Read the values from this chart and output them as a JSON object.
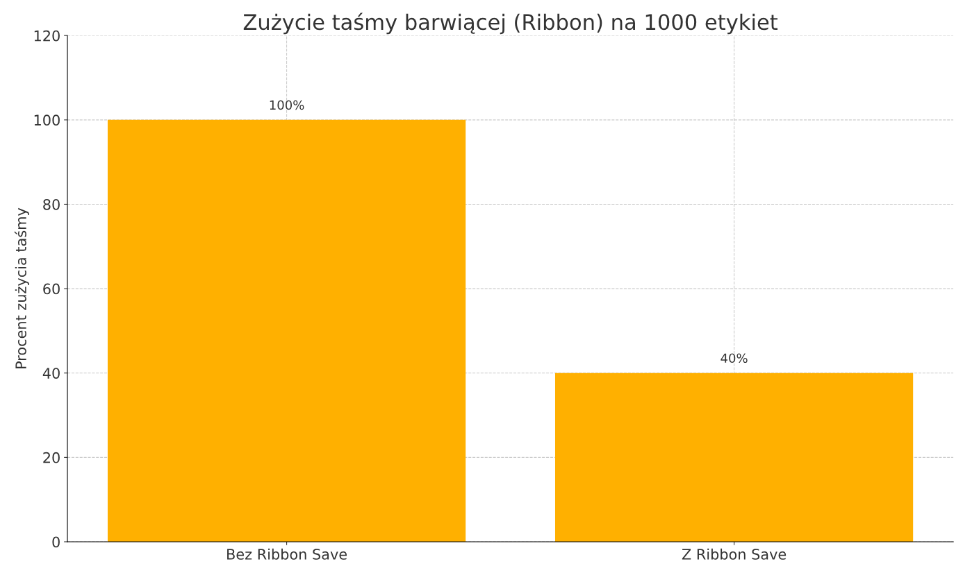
{
  "chart_data": {
    "type": "bar",
    "title": "Zużycie taśmy barwiącej (Ribbon) na 1000 etykiet",
    "ylabel": "Procent zużycia taśmy",
    "categories": [
      "Bez Ribbon Save",
      "Z Ribbon Save"
    ],
    "values": [
      100,
      40
    ],
    "value_labels": [
      "100%",
      "40%"
    ],
    "color": "#ffb000",
    "ylim": [
      0,
      120
    ],
    "yticks": [
      0,
      20,
      40,
      60,
      80,
      100,
      120
    ],
    "grid": true,
    "line_style": "dashed"
  }
}
